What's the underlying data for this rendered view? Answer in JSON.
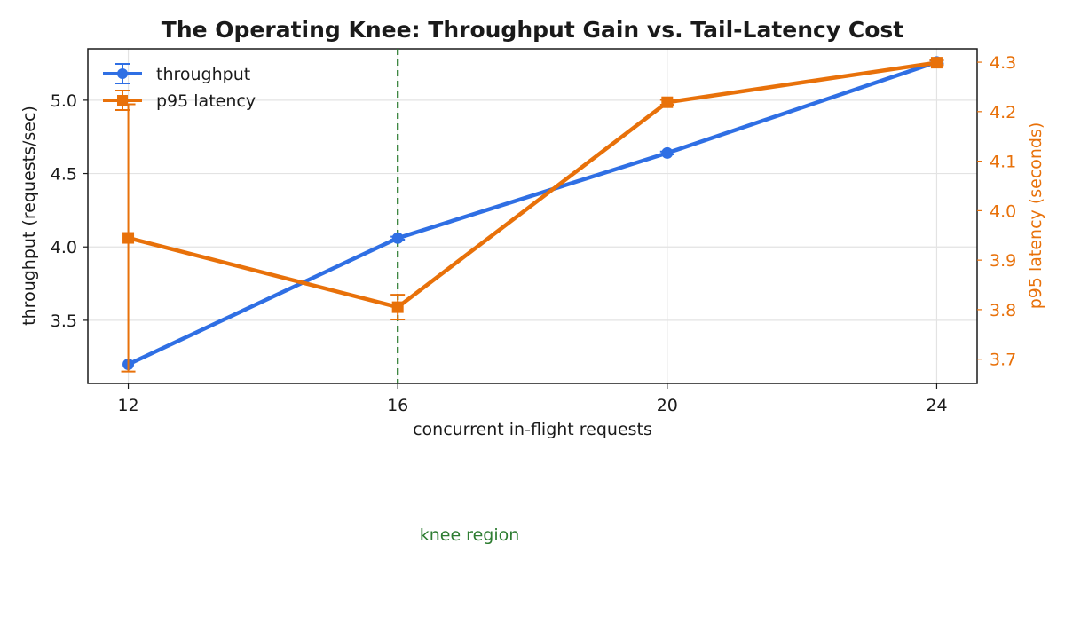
{
  "chart_data": {
    "type": "line",
    "title": "The Operating Knee: Throughput Gain vs. Tail-Latency Cost",
    "xlabel": "concurrent in-flight requests",
    "x": [
      12,
      16,
      20,
      24
    ],
    "xticks": [
      12,
      16,
      20,
      24
    ],
    "xlim": [
      11.4,
      24.6
    ],
    "grid": true,
    "legend_position": "top-left",
    "series": [
      {
        "name": "throughput",
        "axis": "left",
        "color": "#2f6fe4",
        "marker": "circle",
        "values": [
          3.2,
          4.06,
          4.64,
          5.26
        ],
        "errors": [
          0.0,
          0.01,
          0.01,
          0.01
        ]
      },
      {
        "name": "p95 latency",
        "axis": "right",
        "color": "#e8710a",
        "marker": "square",
        "values": [
          3.945,
          3.805,
          4.219,
          4.299
        ],
        "errors": [
          0.27,
          0.025,
          0.005,
          0.005
        ]
      }
    ],
    "left_axis": {
      "label": "throughput (requests/sec)",
      "ylim": [
        3.07,
        5.35
      ],
      "ticks": [
        "3.5",
        "4.0",
        "4.5",
        "5.0"
      ]
    },
    "right_axis": {
      "label": "p95 latency (seconds)",
      "ylim": [
        3.651,
        4.327
      ],
      "ticks": [
        "3.7",
        "3.8",
        "3.9",
        "4.0",
        "4.1",
        "4.2",
        "4.3"
      ],
      "color": "#e8710a"
    },
    "annotations": [
      {
        "type": "vline",
        "x": 16,
        "color": "#2e7d32",
        "style": "dashed"
      },
      {
        "type": "text",
        "text": "knee region",
        "color": "#2e7d32"
      }
    ]
  }
}
